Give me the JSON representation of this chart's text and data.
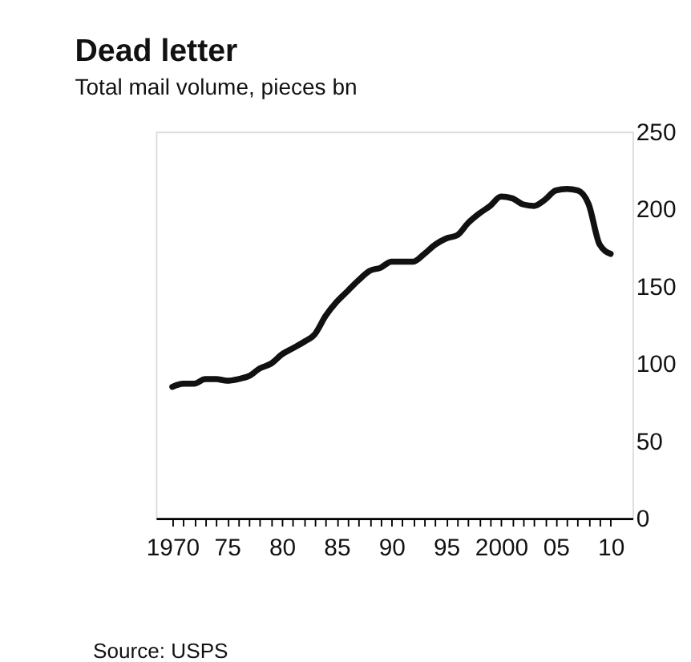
{
  "chart_data": {
    "type": "line",
    "title": "Dead letter",
    "subtitle": "Total mail volume, pieces bn",
    "x": [
      1970,
      1971,
      1972,
      1973,
      1974,
      1975,
      1976,
      1977,
      1978,
      1979,
      1980,
      1981,
      1982,
      1983,
      1984,
      1985,
      1986,
      1987,
      1988,
      1989,
      1990,
      1991,
      1992,
      1993,
      1994,
      1995,
      1996,
      1997,
      1998,
      1999,
      2000,
      2001,
      2002,
      2003,
      2004,
      2005,
      2006,
      2007,
      2008,
      2009,
      2010
    ],
    "series": [
      {
        "color": "#111111",
        "values": [
          85,
          87,
          87,
          90,
          90,
          89,
          90,
          92,
          97,
          100,
          106,
          110,
          114,
          119,
          131,
          140,
          147,
          154,
          160,
          162,
          166,
          166,
          166,
          171,
          177,
          181,
          183,
          191,
          197,
          202,
          208,
          207,
          203,
          202,
          206,
          212,
          213,
          212,
          203,
          177,
          171
        ]
      }
    ],
    "xlim": [
      1968.5,
      2012
    ],
    "xticks": [
      {
        "value": 1970,
        "label": "1970"
      },
      {
        "value": 1971,
        "label": null
      },
      {
        "value": 1972,
        "label": null
      },
      {
        "value": 1973,
        "label": null
      },
      {
        "value": 1974,
        "label": null
      },
      {
        "value": 1975,
        "label": "75"
      },
      {
        "value": 1976,
        "label": null
      },
      {
        "value": 1977,
        "label": null
      },
      {
        "value": 1978,
        "label": null
      },
      {
        "value": 1979,
        "label": null
      },
      {
        "value": 1980,
        "label": "80"
      },
      {
        "value": 1981,
        "label": null
      },
      {
        "value": 1982,
        "label": null
      },
      {
        "value": 1983,
        "label": null
      },
      {
        "value": 1984,
        "label": null
      },
      {
        "value": 1985,
        "label": "85"
      },
      {
        "value": 1986,
        "label": null
      },
      {
        "value": 1987,
        "label": null
      },
      {
        "value": 1988,
        "label": null
      },
      {
        "value": 1989,
        "label": null
      },
      {
        "value": 1990,
        "label": "90"
      },
      {
        "value": 1991,
        "label": null
      },
      {
        "value": 1992,
        "label": null
      },
      {
        "value": 1993,
        "label": null
      },
      {
        "value": 1994,
        "label": null
      },
      {
        "value": 1995,
        "label": "95"
      },
      {
        "value": 1996,
        "label": null
      },
      {
        "value": 1997,
        "label": null
      },
      {
        "value": 1998,
        "label": null
      },
      {
        "value": 1999,
        "label": null
      },
      {
        "value": 2000,
        "label": "2000"
      },
      {
        "value": 2001,
        "label": null
      },
      {
        "value": 2002,
        "label": null
      },
      {
        "value": 2003,
        "label": null
      },
      {
        "value": 2004,
        "label": null
      },
      {
        "value": 2005,
        "label": "05"
      },
      {
        "value": 2006,
        "label": null
      },
      {
        "value": 2007,
        "label": null
      },
      {
        "value": 2008,
        "label": null
      },
      {
        "value": 2009,
        "label": null
      },
      {
        "value": 2010,
        "label": "10"
      }
    ],
    "ylim": [
      0,
      250
    ],
    "yticks": [
      0,
      50,
      100,
      150,
      200,
      250
    ],
    "grid": false,
    "line_style": "solid",
    "marker": "none",
    "annotations": [
      "Source: USPS"
    ]
  }
}
